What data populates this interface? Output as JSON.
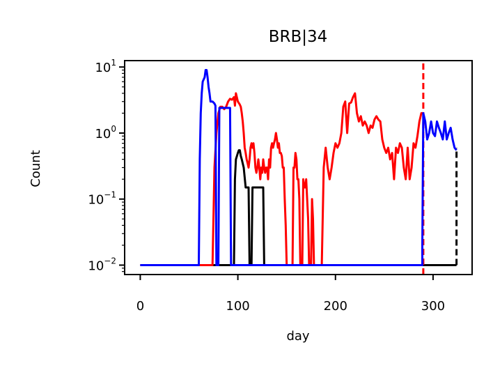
{
  "chart_data": {
    "type": "line",
    "title": "BRB|34",
    "xlabel": "day",
    "ylabel": "Count",
    "xlim": [
      -16,
      340
    ],
    "ylim": [
      0.0072,
      12.5
    ],
    "yscale": "log",
    "grid": false,
    "x_ticks": [
      0,
      100,
      200,
      300
    ],
    "x_tick_labels": [
      "0",
      "100",
      "200",
      "300"
    ],
    "y_ticks": [
      {
        "value": 0.01,
        "base": "10",
        "exp": "−2"
      },
      {
        "value": 0.1,
        "base": "10",
        "exp": "−1"
      },
      {
        "value": 1,
        "base": "10",
        "exp": "0"
      },
      {
        "value": 10,
        "base": "10",
        "exp": "1"
      }
    ],
    "series": [
      {
        "color": "#000000",
        "style": "solid",
        "points": [
          [
            0,
            0.01
          ],
          [
            96,
            0.01
          ],
          [
            97,
            0.2
          ],
          [
            98,
            0.4
          ],
          [
            100,
            0.5
          ],
          [
            101,
            0.55
          ],
          [
            102,
            0.55
          ],
          [
            103,
            0.45
          ],
          [
            104,
            0.4
          ],
          [
            106,
            0.3
          ],
          [
            108,
            0.15
          ],
          [
            110,
            0.15
          ],
          [
            111,
            0.15
          ],
          [
            112,
            0.01
          ],
          [
            114,
            0.01
          ],
          [
            115,
            0.15
          ],
          [
            125,
            0.15
          ],
          [
            126,
            0.15
          ],
          [
            127,
            0.01
          ],
          [
            324,
            0.01
          ]
        ]
      },
      {
        "color": "#000000",
        "style": "dashed",
        "points": [
          [
            324,
            0.01
          ],
          [
            324,
            0.6
          ]
        ]
      },
      {
        "color": "#ff0000",
        "style": "solid",
        "points": [
          [
            0,
            0.01
          ],
          [
            74,
            0.01
          ],
          [
            76,
            0.3
          ],
          [
            78,
            1.0
          ],
          [
            80,
            2.0
          ],
          [
            82,
            2.5
          ],
          [
            84,
            2.5
          ],
          [
            86,
            2.3
          ],
          [
            88,
            2.5
          ],
          [
            90,
            3.0
          ],
          [
            92,
            3.3
          ],
          [
            94,
            3.2
          ],
          [
            96,
            3.5
          ],
          [
            97,
            2.6
          ],
          [
            98,
            4.0
          ],
          [
            100,
            3.0
          ],
          [
            102,
            2.7
          ],
          [
            103,
            2.5
          ],
          [
            104,
            2.0
          ],
          [
            105,
            1.5
          ],
          [
            106,
            1.0
          ],
          [
            107,
            0.6
          ],
          [
            108,
            0.5
          ],
          [
            109,
            0.4
          ],
          [
            110,
            0.35
          ],
          [
            111,
            0.3
          ],
          [
            112,
            0.4
          ],
          [
            113,
            0.6
          ],
          [
            114,
            0.7
          ],
          [
            115,
            0.6
          ],
          [
            116,
            0.7
          ],
          [
            117,
            0.5
          ],
          [
            118,
            0.3
          ],
          [
            119,
            0.25
          ],
          [
            120,
            0.3
          ],
          [
            121,
            0.4
          ],
          [
            122,
            0.3
          ],
          [
            123,
            0.2
          ],
          [
            124,
            0.3
          ],
          [
            125,
            0.25
          ],
          [
            126,
            0.4
          ],
          [
            127,
            0.3
          ],
          [
            128,
            0.25
          ],
          [
            129,
            0.3
          ],
          [
            130,
            0.3
          ],
          [
            131,
            0.2
          ],
          [
            132,
            0.4
          ],
          [
            133,
            0.3
          ],
          [
            134,
            0.6
          ],
          [
            135,
            0.7
          ],
          [
            136,
            0.6
          ],
          [
            137,
            0.7
          ],
          [
            138,
            0.8
          ],
          [
            139,
            1.0
          ],
          [
            140,
            0.8
          ],
          [
            141,
            0.6
          ],
          [
            142,
            0.7
          ],
          [
            143,
            0.5
          ],
          [
            144,
            0.5
          ],
          [
            145,
            0.45
          ],
          [
            146,
            0.3
          ],
          [
            147,
            0.3
          ],
          [
            148,
            0.1
          ],
          [
            149,
            0.04
          ],
          [
            150,
            0.01
          ],
          [
            156,
            0.01
          ],
          [
            157,
            0.3
          ],
          [
            158,
            0.3
          ],
          [
            159,
            0.5
          ],
          [
            160,
            0.4
          ],
          [
            161,
            0.2
          ],
          [
            162,
            0.2
          ],
          [
            163,
            0.1
          ],
          [
            164,
            0.01
          ],
          [
            166,
            0.01
          ],
          [
            167,
            0.2
          ],
          [
            168,
            0.15
          ],
          [
            169,
            0.15
          ],
          [
            170,
            0.2
          ],
          [
            171,
            0.1
          ],
          [
            172,
            0.05
          ],
          [
            173,
            0.01
          ],
          [
            175,
            0.01
          ],
          [
            176,
            0.1
          ],
          [
            177,
            0.05
          ],
          [
            178,
            0.01
          ],
          [
            186,
            0.01
          ],
          [
            188,
            0.3
          ],
          [
            190,
            0.6
          ],
          [
            192,
            0.3
          ],
          [
            194,
            0.2
          ],
          [
            196,
            0.3
          ],
          [
            198,
            0.5
          ],
          [
            200,
            0.7
          ],
          [
            202,
            0.6
          ],
          [
            204,
            0.7
          ],
          [
            206,
            1.0
          ],
          [
            208,
            2.5
          ],
          [
            210,
            3.0
          ],
          [
            212,
            1.0
          ],
          [
            214,
            2.8
          ],
          [
            216,
            2.9
          ],
          [
            218,
            3.5
          ],
          [
            220,
            4.0
          ],
          [
            222,
            2.0
          ],
          [
            224,
            1.5
          ],
          [
            226,
            1.8
          ],
          [
            228,
            1.3
          ],
          [
            230,
            1.5
          ],
          [
            232,
            1.3
          ],
          [
            234,
            1.0
          ],
          [
            236,
            1.3
          ],
          [
            238,
            1.2
          ],
          [
            240,
            1.6
          ],
          [
            242,
            1.8
          ],
          [
            244,
            1.6
          ],
          [
            246,
            1.5
          ],
          [
            248,
            0.8
          ],
          [
            250,
            0.6
          ],
          [
            252,
            0.5
          ],
          [
            254,
            0.6
          ],
          [
            256,
            0.4
          ],
          [
            258,
            0.5
          ],
          [
            260,
            0.2
          ],
          [
            262,
            0.6
          ],
          [
            264,
            0.5
          ],
          [
            266,
            0.7
          ],
          [
            268,
            0.6
          ],
          [
            270,
            0.3
          ],
          [
            272,
            0.2
          ],
          [
            274,
            0.6
          ],
          [
            276,
            0.2
          ],
          [
            278,
            0.3
          ],
          [
            280,
            0.7
          ],
          [
            282,
            0.6
          ],
          [
            284,
            0.9
          ],
          [
            286,
            1.5
          ],
          [
            288,
            2.0
          ],
          [
            290,
            2.0
          ]
        ]
      },
      {
        "color": "#ff0000",
        "style": "dashed",
        "points": [
          [
            290,
            0.0072
          ],
          [
            290,
            12.5
          ]
        ]
      },
      {
        "color": "#0000ff",
        "style": "solid",
        "points": [
          [
            0,
            0.01
          ],
          [
            60,
            0.01
          ],
          [
            61,
            0.4
          ],
          [
            62,
            2.0
          ],
          [
            63,
            4.0
          ],
          [
            64,
            6.0
          ],
          [
            66,
            7.0
          ],
          [
            67,
            9.0
          ],
          [
            68,
            9.0
          ],
          [
            69,
            7.0
          ],
          [
            70,
            5.0
          ],
          [
            71,
            4.0
          ],
          [
            72,
            3.0
          ],
          [
            74,
            3.0
          ],
          [
            76,
            2.8
          ],
          [
            77,
            2.6
          ],
          [
            78,
            0.01
          ],
          [
            80,
            0.01
          ],
          [
            81,
            2.4
          ],
          [
            82,
            2.4
          ],
          [
            90,
            2.4
          ],
          [
            92,
            2.4
          ],
          [
            93,
            0.01
          ],
          [
            289,
            0.01
          ],
          [
            289,
            0.02
          ],
          [
            290,
            2.0
          ],
          [
            292,
            1.5
          ],
          [
            294,
            0.8
          ],
          [
            296,
            1.0
          ],
          [
            298,
            1.5
          ],
          [
            300,
            1.0
          ],
          [
            302,
            0.9
          ],
          [
            304,
            1.5
          ],
          [
            306,
            1.2
          ],
          [
            308,
            1.0
          ],
          [
            310,
            0.8
          ],
          [
            312,
            1.5
          ],
          [
            314,
            0.8
          ],
          [
            316,
            1.0
          ],
          [
            318,
            1.2
          ],
          [
            320,
            0.8
          ],
          [
            322,
            0.6
          ],
          [
            324,
            0.55
          ]
        ]
      }
    ]
  }
}
